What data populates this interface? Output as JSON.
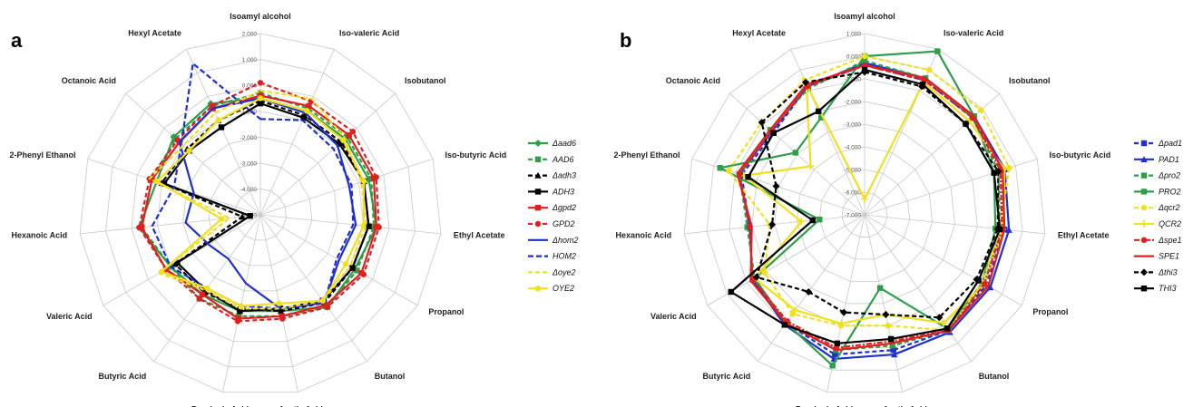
{
  "chart_data": [
    {
      "type": "radar",
      "panel": "a",
      "axes": [
        "Isoamyl alcohol",
        "Iso-valeric Acid",
        "Isobutanol",
        "Iso-butyric Acid",
        "Ethyl Acetate",
        "Propanol",
        "Butanol",
        "Acetic Acid",
        "Propionic Acid",
        "Butyric Acid",
        "Valeric Acid",
        "Hexanoic Acid",
        "2-Phenyl Ethanol",
        "Octanoic Acid",
        "Hexyl Acetate"
      ],
      "r_min": -5,
      "r_max": 2,
      "ticks": [
        2,
        1,
        0,
        -1,
        -2,
        -3,
        -4,
        -5
      ],
      "tick_labels": [
        "2.000",
        "1.000",
        "0.000",
        "-1.000",
        "-2.000",
        "-3.000",
        "-4.000",
        "-5.000"
      ],
      "grid": true,
      "legend_position": "right",
      "series": [
        {
          "name": "Δaad6",
          "color": "#2e9e49",
          "dash": "",
          "marker": "diamond",
          "values": [
            -0.5,
            -0.6,
            -0.6,
            -0.6,
            -0.5,
            -0.8,
            -0.6,
            -1.2,
            -1.2,
            -1.2,
            -1.0,
            -0.3,
            -0.8,
            -0.5,
            -0.3
          ]
        },
        {
          "name": "AAD6",
          "color": "#2e9e49",
          "dash": "5,3",
          "marker": "square",
          "values": [
            -0.3,
            -0.5,
            -0.5,
            -0.5,
            -0.6,
            -0.7,
            -0.6,
            -1.0,
            -1.0,
            -1.0,
            -1.0,
            -0.4,
            -0.6,
            -0.6,
            -0.4
          ]
        },
        {
          "name": "Δadh3",
          "color": "#000000",
          "dash": "5,3",
          "marker": "triangle",
          "values": [
            -0.6,
            -0.8,
            -0.8,
            -0.8,
            -0.8,
            -0.9,
            -0.8,
            -1.2,
            -1.3,
            -1.3,
            -1.2,
            -4.3,
            -1.0,
            -1.2,
            -1.0
          ]
        },
        {
          "name": "ADH3",
          "color": "#000000",
          "dash": "",
          "marker": "square",
          "values": [
            -0.7,
            -0.9,
            -0.9,
            -0.8,
            -0.8,
            -0.9,
            -0.9,
            -1.3,
            -1.2,
            -1.4,
            -1.3,
            -4.6,
            -1.1,
            -1.3,
            -1.3
          ]
        },
        {
          "name": "Δgpd2",
          "color": "#e02020",
          "dash": "",
          "marker": "square",
          "values": [
            -0.4,
            -0.4,
            -0.4,
            -0.4,
            -0.5,
            -0.5,
            -0.7,
            -1.0,
            -0.9,
            -1.2,
            -0.8,
            -0.4,
            -0.6,
            -0.8,
            -0.5
          ]
        },
        {
          "name": "GPD2",
          "color": "#e02020",
          "dash": "5,3",
          "marker": "circle",
          "values": [
            0.1,
            -0.2,
            -0.2,
            -0.3,
            -0.4,
            -0.4,
            -0.6,
            -0.9,
            -0.8,
            -1.0,
            -0.8,
            -0.3,
            -0.5,
            -0.7,
            -0.4
          ]
        },
        {
          "name": "Δhom2",
          "color": "#1f2fd0",
          "dash": "",
          "marker": "none",
          "values": [
            -0.5,
            -0.7,
            -1.0,
            -1.4,
            -1.3,
            -1.5,
            -0.8,
            -1.3,
            -2.3,
            -2.9,
            -2.7,
            -2.1,
            -2.3,
            -0.8,
            -0.5
          ]
        },
        {
          "name": "HOM2",
          "color": "#1f2fd0",
          "dash": "6,3",
          "marker": "none",
          "values": [
            -1.3,
            -1.0,
            -1.2,
            -1.3,
            -1.4,
            -1.6,
            -0.8,
            -1.3,
            -1.4,
            -1.5,
            -1.0,
            -0.8,
            -1.5,
            -0.9,
            1.4
          ]
        },
        {
          "name": "Δoye2",
          "color": "#f0e01e",
          "dash": "5,3",
          "marker": "none",
          "values": [
            -0.2,
            -0.1,
            -0.6,
            -0.9,
            -0.9,
            -1.0,
            -0.9,
            -1.3,
            -1.3,
            -1.4,
            -0.5,
            -3.8,
            -0.5,
            -1.0,
            -0.7
          ]
        },
        {
          "name": "OYE2",
          "color": "#f0e01e",
          "dash": "",
          "marker": "circle",
          "values": [
            -0.5,
            -0.6,
            -0.7,
            -0.8,
            -1.0,
            -1.2,
            -0.9,
            -1.5,
            -1.4,
            -1.5,
            -0.6,
            -3.5,
            -0.8,
            -1.3,
            -1.0
          ]
        }
      ]
    },
    {
      "type": "radar",
      "panel": "b",
      "axes": [
        "Isoamyl alcohol",
        "Iso-valeric Acid",
        "Isobutanol",
        "Iso-butyric Acid",
        "Ethyl Acetate",
        "Propanol",
        "Butanol",
        "Acetic Acid",
        "Propionic Acid",
        "Butyric Acid",
        "Valeric Acid",
        "Hexanoic Acid",
        "2-Phenyl Ethanol",
        "Octanoic Acid",
        "Hexyl Acetate"
      ],
      "r_min": -7,
      "r_max": 1,
      "ticks": [
        1,
        0,
        -1,
        -2,
        -3,
        -4,
        -5,
        -6,
        -7
      ],
      "tick_labels": [
        "1.000",
        "0.000",
        "-1.000",
        "-2.000",
        "-3.000",
        "-4.000",
        "-5.000",
        "-6.000",
        "-7.000"
      ],
      "grid": true,
      "legend_position": "right",
      "series": [
        {
          "name": "Δpad1",
          "color": "#1f2fd0",
          "dash": "5,3",
          "marker": "square",
          "values": [
            -0.4,
            -0.5,
            -0.6,
            -0.6,
            -0.8,
            -0.8,
            -0.7,
            -0.9,
            -0.7,
            -1.1,
            -1.3,
            -1.9,
            -1.3,
            -1.6,
            -0.8
          ]
        },
        {
          "name": "PAD1",
          "color": "#1f2fd0",
          "dash": "",
          "marker": "triangle",
          "values": [
            -0.3,
            -0.4,
            -0.5,
            -0.5,
            -0.6,
            -0.6,
            -0.6,
            -0.7,
            -0.5,
            -1.0,
            -1.3,
            -1.9,
            -1.2,
            -1.5,
            -0.8
          ]
        },
        {
          "name": "Δpro2",
          "color": "#2e9e49",
          "dash": "5,3",
          "marker": "square",
          "values": [
            -0.2,
            -0.4,
            -0.6,
            -0.8,
            -1.0,
            -0.9,
            -0.7,
            -1.1,
            -0.9,
            -1.1,
            -1.4,
            -1.8,
            -1.2,
            -1.4,
            -0.9
          ]
        },
        {
          "name": "PRO2",
          "color": "#2e9e49",
          "dash": "",
          "marker": "square",
          "values": [
            0.0,
            0.9,
            -0.5,
            -1.0,
            -1.2,
            -1.0,
            -0.8,
            -3.7,
            -0.2,
            -1.1,
            -1.4,
            -5.0,
            -0.3,
            -2.9,
            -2.3
          ]
        },
        {
          "name": "Δqcr2",
          "color": "#f0e01e",
          "dash": "5,3",
          "marker": "circle",
          "values": [
            0.0,
            0.0,
            -0.1,
            -0.3,
            -1.0,
            -1.0,
            -0.7,
            -2.0,
            -2.0,
            -1.6,
            -1.9,
            -2.8,
            -0.7,
            -0.9,
            -0.5
          ]
        },
        {
          "name": "QCR2",
          "color": "#f0e01e",
          "dash": "",
          "marker": "plus",
          "values": [
            -6.3,
            -0.6,
            -0.8,
            -0.5,
            -0.9,
            -0.9,
            -1.1,
            -2.5,
            -2.1,
            -1.8,
            -1.4,
            -4.2,
            -1.4,
            -3.8,
            -0.7
          ]
        },
        {
          "name": "Δspe1",
          "color": "#e02020",
          "dash": "6,2,2,2",
          "marker": "circle",
          "values": [
            -0.4,
            -0.5,
            -0.6,
            -0.7,
            -0.9,
            -0.9,
            -0.7,
            -1.3,
            -1.0,
            -1.2,
            -1.3,
            -1.9,
            -1.2,
            -1.5,
            -0.8
          ]
        },
        {
          "name": "SPE1",
          "color": "#e02020",
          "dash": "",
          "marker": "none",
          "values": [
            -0.4,
            -0.4,
            -0.5,
            -0.6,
            -0.8,
            -0.7,
            -0.7,
            -1.2,
            -0.9,
            -1.1,
            -1.2,
            -2.0,
            -1.1,
            -1.4,
            -0.7
          ]
        },
        {
          "name": "Δthi3",
          "color": "#000000",
          "dash": "5,3",
          "marker": "diamond",
          "values": [
            -0.7,
            -0.8,
            -1.0,
            -0.8,
            -1.1,
            -1.3,
            -1.4,
            -2.5,
            -2.6,
            -2.8,
            -1.5,
            -2.9,
            -2.9,
            -0.9,
            -0.6
          ]
        },
        {
          "name": "THI3",
          "color": "#000000",
          "dash": "",
          "marker": "square",
          "values": [
            -0.6,
            -0.7,
            -1.0,
            -1.0,
            -1.0,
            -1.2,
            -0.8,
            -1.4,
            -1.2,
            -1.0,
            -0.2,
            -4.7,
            -1.6,
            -1.6,
            -2.0
          ]
        }
      ]
    }
  ]
}
